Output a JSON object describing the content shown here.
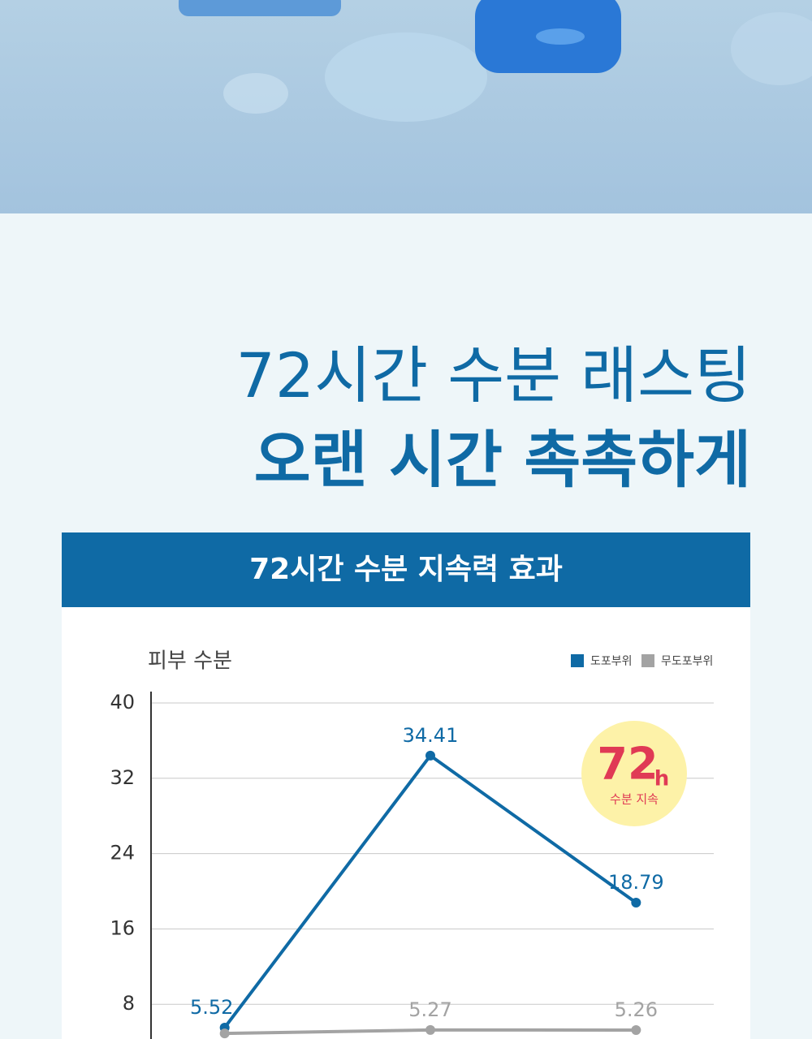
{
  "header": {
    "title_line1": "72시간 수분 래스팅",
    "title_line2": "오랜 시간 촉촉하게",
    "banner": "72시간 수분 지속력 효과"
  },
  "badge": {
    "number": "72",
    "unit": "h",
    "caption": "수분 지속"
  },
  "chart_data": {
    "type": "line",
    "y_label": "피부 수분",
    "categories": [
      null,
      null,
      null
    ],
    "series": [
      {
        "name": "도포부위",
        "color": "#0f6aa5",
        "values": [
          5.52,
          34.41,
          18.79
        ]
      },
      {
        "name": "무도포부위",
        "color": "#a3a3a3",
        "values": [
          4.9,
          5.27,
          5.26
        ]
      }
    ],
    "ylim": [
      0,
      40
    ],
    "yticks": [
      8,
      16,
      24,
      32,
      40
    ],
    "grid": true,
    "legend": "top-right"
  }
}
